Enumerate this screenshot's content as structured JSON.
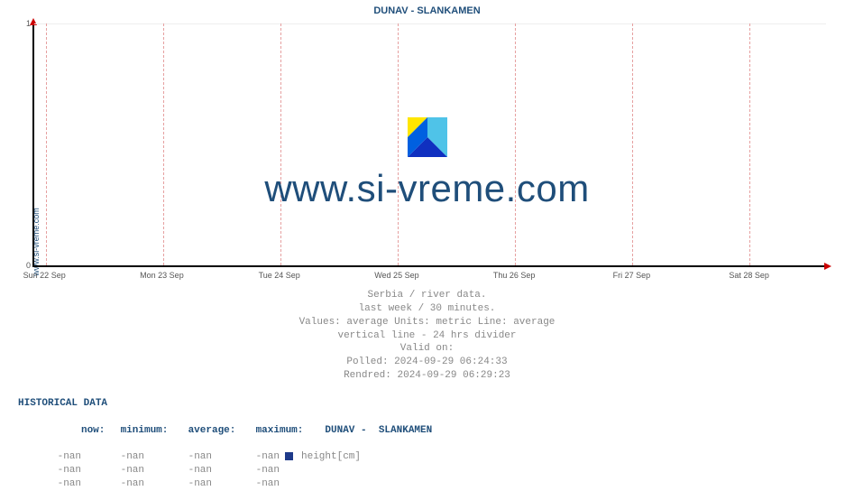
{
  "site": {
    "side_label": "www.si-vreme.com",
    "watermark": "www.si-vreme.com"
  },
  "chart": {
    "type": "line",
    "title": "DUNAV -  SLANKAMEN",
    "background_color": "#ffffff",
    "axis_color": "#000000",
    "arrow_color": "#cc0000",
    "grid_vertical_color": "#e6a0a0",
    "grid_horizontal_color": "#eeeeee",
    "title_color": "#1f4e7a",
    "title_fontsize": 11,
    "label_fontsize": 9,
    "label_color": "#555555",
    "ylim": [
      0,
      1
    ],
    "yticks": [
      0,
      1
    ],
    "x_categories": [
      "Sun 22 Sep",
      "Mon 23 Sep",
      "Tue 24 Sep",
      "Wed 25 Sep",
      "Thu 26 Sep",
      "Fri 27 Sep",
      "Sat 28 Sep"
    ],
    "x_positions_pct": [
      1.5,
      16.3,
      31.1,
      45.9,
      60.7,
      75.5,
      90.3
    ],
    "series": []
  },
  "caption": {
    "line1": "Serbia / river data.",
    "line2": "last week / 30 minutes.",
    "line3": "Values: average  Units: metric  Line: average",
    "line4": "vertical line - 24 hrs  divider",
    "line5": "Valid on:",
    "line6": "Polled: 2024-09-29 06:24:33",
    "line7": "Rendred: 2024-09-29 06:29:23"
  },
  "historical": {
    "header": "HISTORICAL DATA",
    "columns": {
      "now": "now",
      "min": "minimum",
      "avg": "average",
      "max": "maximum"
    },
    "series_label": "DUNAV -  SLANKAMEN",
    "unit_label": "height[cm]",
    "marker_color": "#1e3a8a",
    "rows": [
      {
        "now": "-nan",
        "min": "-nan",
        "avg": "-nan",
        "max": "-nan"
      },
      {
        "now": "-nan",
        "min": "-nan",
        "avg": "-nan",
        "max": "-nan"
      },
      {
        "now": "-nan",
        "min": "-nan",
        "avg": "-nan",
        "max": "-nan"
      }
    ]
  }
}
